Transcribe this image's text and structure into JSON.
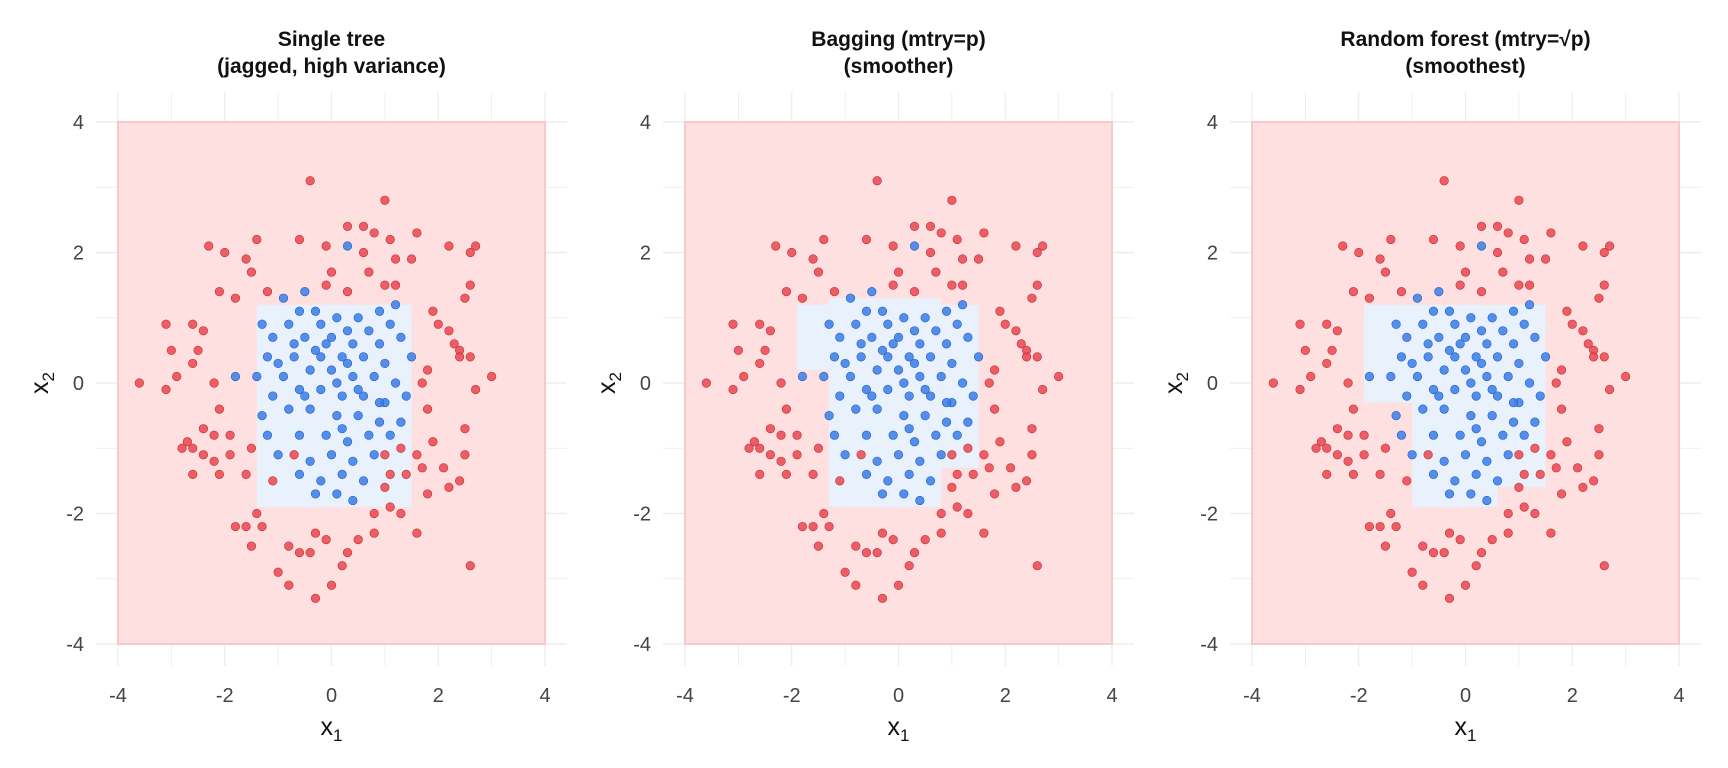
{
  "chart_data": [
    {
      "type": "scatter",
      "title": [
        "Single tree",
        "(jagged, high variance)"
      ],
      "xlabel": "x",
      "xlabel_sub": "1",
      "ylabel": "x",
      "ylabel_sub": "2",
      "xlim": [
        -4,
        4
      ],
      "ylim": [
        -4,
        4
      ],
      "xticks": [
        -4,
        -2,
        0,
        2,
        4
      ],
      "yticks": [
        -4,
        -2,
        0,
        2,
        4
      ],
      "grid": true,
      "regions": [
        {
          "class": "outer",
          "color": "#ffe0e0",
          "rects": [
            [
              -4,
              -4,
              4,
              4
            ]
          ]
        },
        {
          "class": "inner",
          "color": "#e8f1fc",
          "rects": [
            [
              -1.4,
              -1.9,
              1.5,
              1.2
            ]
          ]
        }
      ]
    },
    {
      "type": "scatter",
      "title": [
        "Bagging (mtry=p)",
        "(smoother)"
      ],
      "xlabel": "x",
      "xlabel_sub": "1",
      "ylabel": "x",
      "ylabel_sub": "2",
      "xlim": [
        -4,
        4
      ],
      "ylim": [
        -4,
        4
      ],
      "xticks": [
        -4,
        -2,
        0,
        2,
        4
      ],
      "yticks": [
        -4,
        -2,
        0,
        2,
        4
      ],
      "grid": true,
      "regions": [
        {
          "class": "outer",
          "color": "#ffe0e0",
          "rects": [
            [
              -4,
              -4,
              4,
              4
            ]
          ]
        },
        {
          "class": "inner",
          "color": "#e8f1fc",
          "rects": [
            [
              -1.3,
              -1.9,
              0.8,
              1.3
            ],
            [
              -1.9,
              0.2,
              -1.3,
              1.2
            ],
            [
              0.8,
              -1.3,
              1.5,
              1.2
            ]
          ]
        }
      ]
    },
    {
      "type": "scatter",
      "title": [
        "Random forest (mtry=√p)",
        "(smoothest)"
      ],
      "xlabel": "x",
      "xlabel_sub": "1",
      "ylabel": "x",
      "ylabel_sub": "2",
      "xlim": [
        -4,
        4
      ],
      "ylim": [
        -4,
        4
      ],
      "xticks": [
        -4,
        -2,
        0,
        2,
        4
      ],
      "yticks": [
        -4,
        -2,
        0,
        2,
        4
      ],
      "grid": true,
      "regions": [
        {
          "class": "outer",
          "color": "#ffe0e0",
          "rects": [
            [
              -4,
              -4,
              4,
              4
            ]
          ]
        },
        {
          "class": "inner",
          "color": "#e8f1fc",
          "rects": [
            [
              -1.0,
              -1.9,
              0.6,
              1.2
            ],
            [
              -1.9,
              -0.3,
              -1.0,
              1.2
            ],
            [
              0.6,
              -1.6,
              1.5,
              1.2
            ]
          ]
        }
      ]
    }
  ],
  "points": {
    "red_color": "#e8474f",
    "blue_color": "#3a7ce8",
    "red": [
      [
        -0.4,
        3.1
      ],
      [
        1.0,
        2.8
      ],
      [
        -1.4,
        2.2
      ],
      [
        -2.3,
        2.1
      ],
      [
        -2.0,
        2.0
      ],
      [
        -1.6,
        1.9
      ],
      [
        -1.5,
        1.7
      ],
      [
        -0.6,
        2.2
      ],
      [
        -0.1,
        2.1
      ],
      [
        0.3,
        2.4
      ],
      [
        0.6,
        2.4
      ],
      [
        0.8,
        2.3
      ],
      [
        1.1,
        2.2
      ],
      [
        1.6,
        2.3
      ],
      [
        0.6,
        2.0
      ],
      [
        1.2,
        1.9
      ],
      [
        1.5,
        1.9
      ],
      [
        2.2,
        2.1
      ],
      [
        2.6,
        2.0
      ],
      [
        2.7,
        2.1
      ],
      [
        0.0,
        1.7
      ],
      [
        0.7,
        1.7
      ],
      [
        1.0,
        1.5
      ],
      [
        0.3,
        1.4
      ],
      [
        -2.1,
        1.4
      ],
      [
        -0.1,
        1.5
      ],
      [
        1.2,
        1.5
      ],
      [
        2.6,
        1.5
      ],
      [
        2.5,
        1.3
      ],
      [
        -1.2,
        1.4
      ],
      [
        -1.8,
        1.3
      ],
      [
        1.9,
        1.1
      ],
      [
        2.0,
        0.9
      ],
      [
        2.2,
        0.8
      ],
      [
        -3.1,
        0.9
      ],
      [
        -2.6,
        0.9
      ],
      [
        -2.4,
        0.8
      ],
      [
        2.3,
        0.6
      ],
      [
        -3.0,
        0.5
      ],
      [
        -2.5,
        0.5
      ],
      [
        -2.6,
        0.3
      ],
      [
        2.4,
        0.5
      ],
      [
        2.4,
        0.4
      ],
      [
        2.6,
        0.4
      ],
      [
        -2.9,
        0.1
      ],
      [
        -2.2,
        0.0
      ],
      [
        1.8,
        0.2
      ],
      [
        1.7,
        0.0
      ],
      [
        -3.6,
        0.0
      ],
      [
        -3.1,
        -0.1
      ],
      [
        2.7,
        -0.1
      ],
      [
        3.0,
        0.1
      ],
      [
        1.8,
        -0.4
      ],
      [
        -2.1,
        -0.4
      ],
      [
        -2.4,
        -0.7
      ],
      [
        2.5,
        -0.7
      ],
      [
        -1.9,
        -0.8
      ],
      [
        1.9,
        -0.9
      ],
      [
        -2.2,
        -0.8
      ],
      [
        -2.7,
        -0.9
      ],
      [
        -2.8,
        -1.0
      ],
      [
        -2.6,
        -1.0
      ],
      [
        -2.4,
        -1.1
      ],
      [
        -1.9,
        -1.1
      ],
      [
        -1.5,
        -1.0
      ],
      [
        -0.7,
        -1.1
      ],
      [
        1.0,
        -1.1
      ],
      [
        1.3,
        -1.0
      ],
      [
        1.6,
        -1.1
      ],
      [
        2.5,
        -1.1
      ],
      [
        -2.6,
        -1.4
      ],
      [
        -2.2,
        -1.2
      ],
      [
        -2.1,
        -1.4
      ],
      [
        -1.6,
        -1.4
      ],
      [
        1.1,
        -1.4
      ],
      [
        1.4,
        -1.4
      ],
      [
        1.7,
        -1.3
      ],
      [
        2.1,
        -1.3
      ],
      [
        2.4,
        -1.5
      ],
      [
        -1.1,
        -1.5
      ],
      [
        1.0,
        -1.6
      ],
      [
        1.8,
        -1.7
      ],
      [
        2.2,
        -1.6
      ],
      [
        1.1,
        -1.9
      ],
      [
        1.3,
        -2.0
      ],
      [
        -1.8,
        -2.2
      ],
      [
        -1.6,
        -2.2
      ],
      [
        -1.5,
        -2.5
      ],
      [
        -0.8,
        -2.5
      ],
      [
        -1.3,
        -2.2
      ],
      [
        -0.3,
        -2.3
      ],
      [
        -0.1,
        -2.4
      ],
      [
        0.5,
        -2.4
      ],
      [
        0.8,
        -2.3
      ],
      [
        1.6,
        -2.3
      ],
      [
        -0.4,
        -2.6
      ],
      [
        0.3,
        -2.6
      ],
      [
        0.2,
        -2.8
      ],
      [
        -1.0,
        -2.9
      ],
      [
        -0.8,
        -3.1
      ],
      [
        0.0,
        -3.1
      ],
      [
        -0.3,
        -3.3
      ],
      [
        -0.6,
        -2.6
      ],
      [
        2.6,
        -2.8
      ],
      [
        -1.4,
        -2.0
      ],
      [
        0.8,
        -2.0
      ]
    ],
    "blue": [
      [
        -0.5,
        1.4
      ],
      [
        -0.9,
        1.3
      ],
      [
        -0.6,
        1.1
      ],
      [
        -0.3,
        1.1
      ],
      [
        0.1,
        1.0
      ],
      [
        0.5,
        1.0
      ],
      [
        0.9,
        1.1
      ],
      [
        1.2,
        1.2
      ],
      [
        -1.3,
        0.9
      ],
      [
        -0.8,
        0.9
      ],
      [
        -0.2,
        0.9
      ],
      [
        0.3,
        0.8
      ],
      [
        0.7,
        0.8
      ],
      [
        1.1,
        0.9
      ],
      [
        -1.1,
        0.7
      ],
      [
        -0.5,
        0.7
      ],
      [
        0.0,
        0.7
      ],
      [
        0.4,
        0.6
      ],
      [
        0.9,
        0.6
      ],
      [
        1.3,
        0.7
      ],
      [
        -1.2,
        0.4
      ],
      [
        -0.7,
        0.4
      ],
      [
        -0.3,
        0.5
      ],
      [
        0.2,
        0.4
      ],
      [
        0.6,
        0.4
      ],
      [
        1.0,
        0.3
      ],
      [
        1.5,
        0.4
      ],
      [
        -1.4,
        0.1
      ],
      [
        -0.9,
        0.1
      ],
      [
        -0.4,
        0.2
      ],
      [
        0.0,
        0.2
      ],
      [
        0.4,
        0.1
      ],
      [
        0.8,
        0.1
      ],
      [
        1.2,
        0.0
      ],
      [
        -1.8,
        0.1
      ],
      [
        -1.1,
        -0.2
      ],
      [
        -0.6,
        -0.1
      ],
      [
        -0.2,
        -0.1
      ],
      [
        0.2,
        -0.2
      ],
      [
        0.6,
        -0.2
      ],
      [
        1.0,
        -0.3
      ],
      [
        1.4,
        -0.2
      ],
      [
        -1.3,
        -0.5
      ],
      [
        -0.8,
        -0.4
      ],
      [
        -0.4,
        -0.4
      ],
      [
        0.1,
        -0.5
      ],
      [
        0.5,
        -0.5
      ],
      [
        0.9,
        -0.6
      ],
      [
        1.3,
        -0.6
      ],
      [
        -1.2,
        -0.8
      ],
      [
        -0.6,
        -0.8
      ],
      [
        -0.1,
        -0.8
      ],
      [
        0.3,
        -0.9
      ],
      [
        0.7,
        -0.8
      ],
      [
        1.1,
        -0.8
      ],
      [
        -1.0,
        -1.1
      ],
      [
        -0.4,
        -1.2
      ],
      [
        0.0,
        -1.1
      ],
      [
        0.4,
        -1.2
      ],
      [
        0.8,
        -1.1
      ],
      [
        -0.6,
        -1.4
      ],
      [
        -0.2,
        -1.5
      ],
      [
        0.2,
        -1.4
      ],
      [
        0.6,
        -1.5
      ],
      [
        -0.3,
        -1.7
      ],
      [
        0.1,
        -1.7
      ],
      [
        0.4,
        -1.8
      ],
      [
        0.3,
        2.1
      ],
      [
        -0.2,
        0.4
      ],
      [
        0.1,
        0.0
      ],
      [
        -0.5,
        -0.2
      ],
      [
        0.3,
        0.3
      ],
      [
        -0.1,
        0.6
      ],
      [
        0.5,
        -0.1
      ],
      [
        -0.7,
        0.6
      ],
      [
        0.2,
        -0.7
      ],
      [
        -1.0,
        0.3
      ],
      [
        0.9,
        -0.3
      ]
    ]
  }
}
